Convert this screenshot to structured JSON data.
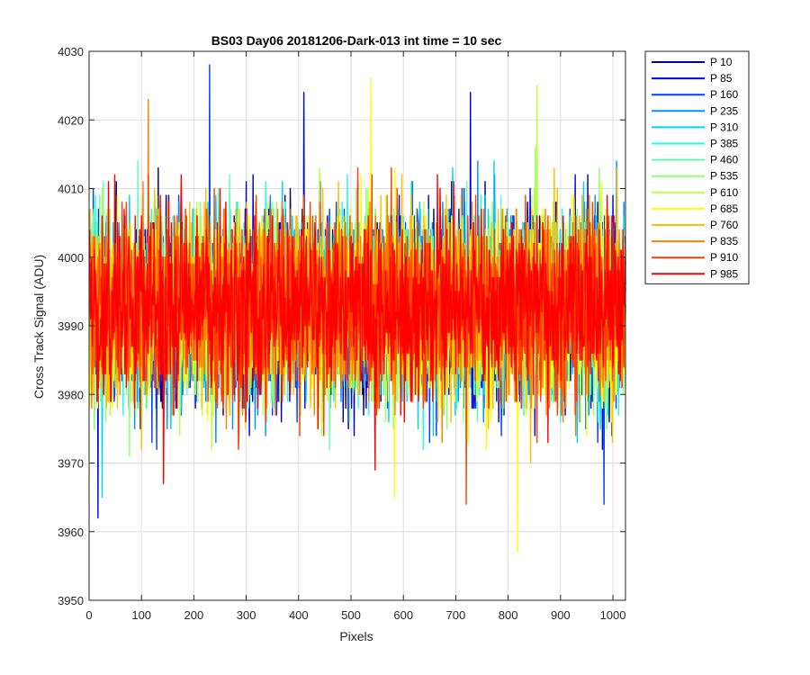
{
  "chart_data": {
    "type": "line",
    "title": "BS03 Day06 20181206-Dark-013 int time = 10 sec",
    "xlabel": "Pixels",
    "ylabel": "Cross Track Signal (ADU)",
    "xlim": [
      0,
      1024
    ],
    "ylim": [
      3950,
      4030
    ],
    "xticks": [
      0,
      100,
      200,
      300,
      400,
      500,
      600,
      700,
      800,
      900,
      1000
    ],
    "yticks": [
      3950,
      3960,
      3970,
      3980,
      3990,
      4000,
      4010,
      4020,
      4030
    ],
    "grid": true,
    "legend_position": "outside-top-right",
    "x": {
      "start": 1,
      "end": 1024,
      "step": 1
    },
    "noise": {
      "mean": 3993,
      "sd": 6.5
    },
    "series": [
      {
        "name": "P 10",
        "color": "#00008f"
      },
      {
        "name": "P 85",
        "color": "#0000df"
      },
      {
        "name": "P 160",
        "color": "#0040ff"
      },
      {
        "name": "P 235",
        "color": "#0090ff"
      },
      {
        "name": "P 310",
        "color": "#00d0ff"
      },
      {
        "name": "P 385",
        "color": "#20ffdf"
      },
      {
        "name": "P 460",
        "color": "#60ffaf"
      },
      {
        "name": "P 535",
        "color": "#90ff70"
      },
      {
        "name": "P 610",
        "color": "#c0ff40"
      },
      {
        "name": "P 685",
        "color": "#ffff00"
      },
      {
        "name": "P 760",
        "color": "#ffc000"
      },
      {
        "name": "P 835",
        "color": "#ff8000"
      },
      {
        "name": "P 910",
        "color": "#ff4000"
      },
      {
        "name": "P 985",
        "color": "#ff0000"
      }
    ],
    "annotated_extremes": [
      {
        "series": "P 160",
        "x": 230,
        "y": 4028
      },
      {
        "series": "P 835",
        "x": 113,
        "y": 4023
      },
      {
        "series": "P 685",
        "x": 538,
        "y": 4026
      },
      {
        "series": "P 610",
        "x": 855,
        "y": 4025
      },
      {
        "series": "P 85",
        "x": 410,
        "y": 4024
      },
      {
        "series": "P 85",
        "x": 728,
        "y": 4024
      },
      {
        "series": "P 685",
        "x": 818,
        "y": 3957
      },
      {
        "series": "P 85",
        "x": 17,
        "y": 3962
      },
      {
        "series": "P 910",
        "x": 720,
        "y": 3964
      },
      {
        "series": "P 160",
        "x": 983,
        "y": 3964
      },
      {
        "series": "P 310",
        "x": 25,
        "y": 3965
      },
      {
        "series": "P 685",
        "x": 583,
        "y": 3965
      },
      {
        "series": "P 985",
        "x": 142,
        "y": 3967
      }
    ]
  }
}
